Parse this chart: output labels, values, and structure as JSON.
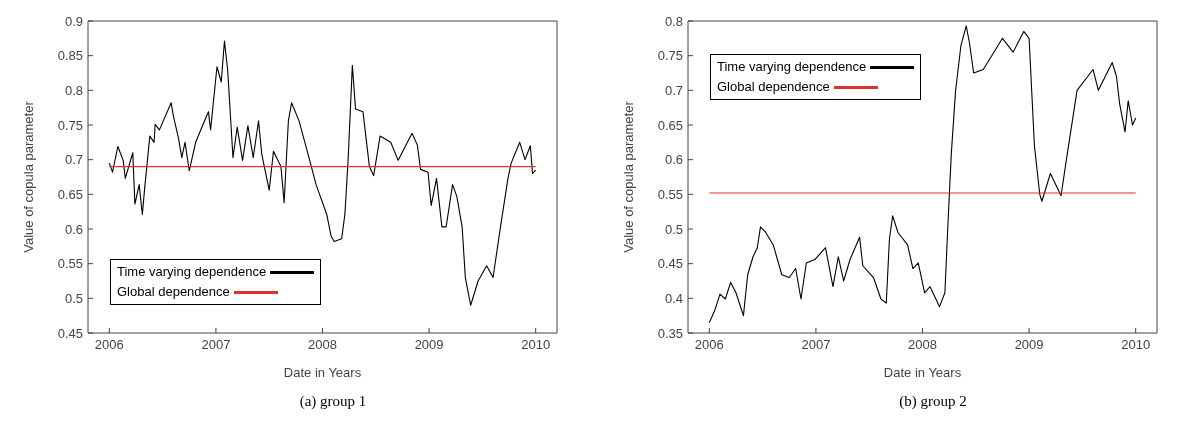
{
  "chart_data": [
    {
      "type": "line",
      "xlabel": "Date in Years",
      "ylabel": "Value of copula parameter",
      "annotations": [
        "(a) group 1"
      ],
      "xlim": [
        2005.8,
        2010.2
      ],
      "xticks": [
        2006,
        2007,
        2008,
        2009,
        2010
      ],
      "ylim": [
        0.45,
        0.9
      ],
      "yticks": [
        0.45,
        0.5,
        0.55,
        0.6,
        0.65,
        0.7,
        0.75,
        0.8,
        0.85,
        0.9
      ],
      "grid": false,
      "legend": "bottom left",
      "marker": "none",
      "line_style": "solid",
      "series": [
        {
          "name": "Time varying dependence",
          "color": "#000000",
          "x": [
            2006.0,
            2006.03,
            2006.08,
            2006.13,
            2006.15,
            2006.22,
            2006.24,
            2006.28,
            2006.31,
            2006.33,
            2006.38,
            2006.42,
            2006.43,
            2006.47,
            2006.58,
            2006.6,
            2006.65,
            2006.68,
            2006.71,
            2006.75,
            2006.81,
            2006.88,
            2006.93,
            2006.95,
            2007.01,
            2007.05,
            2007.08,
            2007.11,
            2007.16,
            2007.2,
            2007.25,
            2007.3,
            2007.35,
            2007.4,
            2007.43,
            2007.5,
            2007.54,
            2007.61,
            2007.64,
            2007.68,
            2007.71,
            2007.78,
            2007.88,
            2007.94,
            2008.04,
            2008.08,
            2008.11,
            2008.18,
            2008.21,
            2008.24,
            2008.28,
            2008.31,
            2008.38,
            2008.44,
            2008.48,
            2008.54,
            2008.64,
            2008.71,
            2008.84,
            2008.89,
            2008.92,
            2008.99,
            2009.02,
            2009.07,
            2009.12,
            2009.16,
            2009.22,
            2009.26,
            2009.31,
            2009.34,
            2009.39,
            2009.46,
            2009.54,
            2009.6,
            2009.67,
            2009.74,
            2009.77,
            2009.85,
            2009.9,
            2009.95,
            2009.97,
            2010.0
          ],
          "values": [
            0.695,
            0.682,
            0.719,
            0.699,
            0.673,
            0.71,
            0.636,
            0.664,
            0.621,
            0.656,
            0.734,
            0.725,
            0.751,
            0.743,
            0.782,
            0.764,
            0.73,
            0.703,
            0.725,
            0.684,
            0.725,
            0.751,
            0.769,
            0.743,
            0.834,
            0.812,
            0.871,
            0.83,
            0.703,
            0.747,
            0.699,
            0.749,
            0.703,
            0.756,
            0.708,
            0.656,
            0.712,
            0.69,
            0.638,
            0.756,
            0.782,
            0.756,
            0.699,
            0.664,
            0.621,
            0.59,
            0.582,
            0.586,
            0.621,
            0.699,
            0.836,
            0.773,
            0.769,
            0.69,
            0.677,
            0.734,
            0.725,
            0.699,
            0.738,
            0.721,
            0.686,
            0.682,
            0.634,
            0.673,
            0.603,
            0.603,
            0.664,
            0.647,
            0.603,
            0.53,
            0.49,
            0.525,
            0.547,
            0.53,
            0.603,
            0.673,
            0.695,
            0.725,
            0.7,
            0.72,
            0.68,
            0.685
          ]
        },
        {
          "name": "Global dependence",
          "color": "#e0302a",
          "x": [
            2006.0,
            2010.0
          ],
          "values": [
            0.69,
            0.69
          ]
        }
      ]
    },
    {
      "type": "line",
      "xlabel": "Date in Years",
      "ylabel": "Value of copula parameter",
      "annotations": [
        "(b) group 2"
      ],
      "xlim": [
        2005.8,
        2010.2
      ],
      "xticks": [
        2006,
        2007,
        2008,
        2009,
        2010
      ],
      "ylim": [
        0.35,
        0.8
      ],
      "yticks": [
        0.35,
        0.4,
        0.45,
        0.5,
        0.55,
        0.6,
        0.65,
        0.7,
        0.75,
        0.8
      ],
      "grid": false,
      "legend": "top left",
      "marker": "none",
      "line_style": "solid",
      "series": [
        {
          "name": "Time varying dependence",
          "color": "#000000",
          "x": [
            2006.0,
            2006.05,
            2006.1,
            2006.15,
            2006.2,
            2006.25,
            2006.32,
            2006.36,
            2006.41,
            2006.45,
            2006.48,
            2006.53,
            2006.6,
            2006.68,
            2006.75,
            2006.81,
            2006.86,
            2006.91,
            2006.99,
            2007.09,
            2007.16,
            2007.21,
            2007.26,
            2007.32,
            2007.41,
            2007.44,
            2007.54,
            2007.61,
            2007.66,
            2007.69,
            2007.72,
            2007.77,
            2007.86,
            2007.91,
            2007.96,
            2008.02,
            2008.07,
            2008.16,
            2008.21,
            2008.24,
            2008.27,
            2008.31,
            2008.36,
            2008.41,
            2008.44,
            2008.48,
            2008.57,
            2008.65,
            2008.75,
            2008.85,
            2008.95,
            2009.0,
            2009.05,
            2009.1,
            2009.12,
            2009.2,
            2009.3,
            2009.35,
            2009.45,
            2009.55,
            2009.6,
            2009.65,
            2009.78,
            2009.82,
            2009.85,
            2009.9,
            2009.93,
            2009.97,
            2010.0
          ],
          "values": [
            0.365,
            0.382,
            0.406,
            0.399,
            0.423,
            0.408,
            0.375,
            0.434,
            0.46,
            0.473,
            0.503,
            0.495,
            0.477,
            0.434,
            0.43,
            0.443,
            0.399,
            0.451,
            0.456,
            0.473,
            0.417,
            0.46,
            0.425,
            0.456,
            0.488,
            0.447,
            0.43,
            0.399,
            0.393,
            0.486,
            0.519,
            0.495,
            0.477,
            0.443,
            0.451,
            0.408,
            0.417,
            0.388,
            0.408,
            0.512,
            0.608,
            0.699,
            0.764,
            0.793,
            0.769,
            0.725,
            0.73,
            0.75,
            0.775,
            0.755,
            0.785,
            0.775,
            0.62,
            0.55,
            0.54,
            0.58,
            0.548,
            0.6,
            0.7,
            0.72,
            0.73,
            0.7,
            0.74,
            0.72,
            0.68,
            0.64,
            0.685,
            0.65,
            0.66
          ]
        },
        {
          "name": "Global dependence",
          "color": "#e0302a",
          "x": [
            2006.0,
            2010.0
          ],
          "values": [
            0.552,
            0.552
          ]
        }
      ]
    }
  ]
}
